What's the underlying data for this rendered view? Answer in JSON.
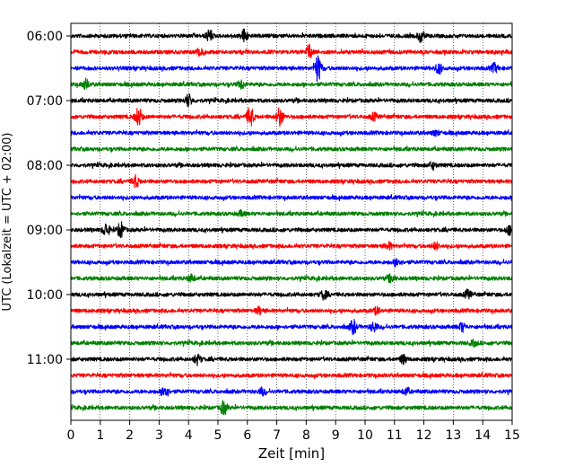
{
  "chart_data": {
    "type": "line",
    "title": "",
    "xlabel": "Zeit  [min]",
    "ylabel": "UTC (Lokalzeit = UTC + 02:00)",
    "xlim": [
      0,
      15
    ],
    "x_ticks": [
      "0",
      "1",
      "2",
      "3",
      "4",
      "5",
      "6",
      "7",
      "8",
      "9",
      "10",
      "11",
      "12",
      "13",
      "14",
      "15"
    ],
    "y_tick_labels": [
      "06:00",
      "07:00",
      "08:00",
      "09:00",
      "10:00",
      "11:00"
    ],
    "grid": "vertical dotted at each minute",
    "series_colors": [
      "#000000",
      "#ff0000",
      "#0000ff",
      "#008000"
    ],
    "series": [
      {
        "name": "06:00",
        "events": [
          [
            4.7,
            0.6
          ],
          [
            5.9,
            0.8
          ],
          [
            11.9,
            0.7
          ]
        ]
      },
      {
        "name": "06:15",
        "events": [
          [
            4.4,
            0.6
          ],
          [
            8.1,
            0.8
          ]
        ]
      },
      {
        "name": "06:30",
        "events": [
          [
            8.4,
            1.6
          ],
          [
            12.5,
            0.6
          ],
          [
            14.4,
            0.5
          ]
        ]
      },
      {
        "name": "06:45",
        "events": [
          [
            0.5,
            0.6
          ],
          [
            5.8,
            0.5
          ]
        ]
      },
      {
        "name": "07:00",
        "events": [
          [
            4.0,
            0.7
          ]
        ]
      },
      {
        "name": "07:15",
        "events": [
          [
            2.3,
            1.1
          ],
          [
            6.1,
            1.2
          ],
          [
            7.1,
            1.1
          ],
          [
            10.3,
            0.4
          ]
        ]
      },
      {
        "name": "07:30",
        "events": [
          [
            12.4,
            0.3
          ]
        ]
      },
      {
        "name": "07:45",
        "events": []
      },
      {
        "name": "08:00",
        "events": [
          [
            12.3,
            0.4
          ]
        ]
      },
      {
        "name": "08:15",
        "events": [
          [
            2.2,
            0.7
          ]
        ]
      },
      {
        "name": "08:30",
        "events": []
      },
      {
        "name": "08:45",
        "events": [
          [
            5.8,
            0.3
          ]
        ]
      },
      {
        "name": "09:00",
        "events": [
          [
            1.2,
            0.8
          ],
          [
            1.7,
            0.9
          ],
          [
            14.9,
            0.5
          ]
        ]
      },
      {
        "name": "09:15",
        "events": [
          [
            10.8,
            0.4
          ],
          [
            12.4,
            0.4
          ]
        ]
      },
      {
        "name": "09:30",
        "events": [
          [
            11.1,
            0.5
          ]
        ]
      },
      {
        "name": "09:45",
        "events": [
          [
            4.1,
            0.4
          ],
          [
            10.9,
            0.5
          ]
        ]
      },
      {
        "name": "10:00",
        "events": [
          [
            8.6,
            0.5
          ],
          [
            13.5,
            0.5
          ]
        ]
      },
      {
        "name": "10:15",
        "events": [
          [
            6.4,
            0.4
          ],
          [
            10.4,
            0.4
          ]
        ]
      },
      {
        "name": "10:30",
        "events": [
          [
            9.6,
            0.8
          ],
          [
            10.3,
            0.6
          ],
          [
            13.3,
            0.5
          ]
        ]
      },
      {
        "name": "10:45",
        "events": [
          [
            13.7,
            0.3
          ]
        ]
      },
      {
        "name": "11:00",
        "events": [
          [
            4.3,
            0.6
          ],
          [
            11.3,
            0.5
          ]
        ]
      },
      {
        "name": "11:15",
        "events": []
      },
      {
        "name": "11:30",
        "events": [
          [
            3.2,
            0.8
          ],
          [
            6.5,
            0.4
          ],
          [
            11.4,
            0.4
          ]
        ]
      },
      {
        "name": "11:45",
        "events": [
          [
            5.2,
            0.8
          ]
        ]
      }
    ]
  }
}
